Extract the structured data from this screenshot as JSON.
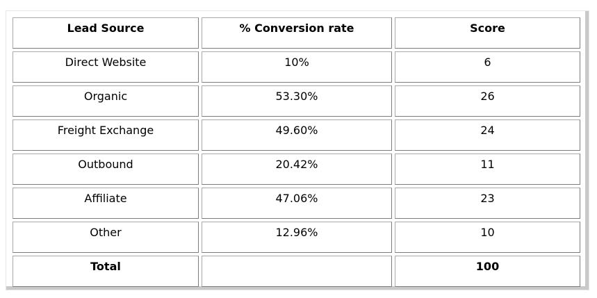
{
  "table": {
    "headers": [
      "Lead Source",
      "% Conversion rate",
      "Score"
    ],
    "rows": [
      {
        "source": "Direct Website",
        "rate": "10%",
        "score": "6"
      },
      {
        "source": "Organic",
        "rate": "53.30%",
        "score": "26"
      },
      {
        "source": "Freight Exchange",
        "rate": "49.60%",
        "score": "24"
      },
      {
        "source": "Outbound",
        "rate": "20.42%",
        "score": "11"
      },
      {
        "source": "Affiliate",
        "rate": "47.06%",
        "score": "23"
      },
      {
        "source": "Other",
        "rate": "12.96%",
        "score": "10"
      }
    ],
    "total": {
      "label": "Total",
      "rate": "",
      "score": "100"
    }
  }
}
